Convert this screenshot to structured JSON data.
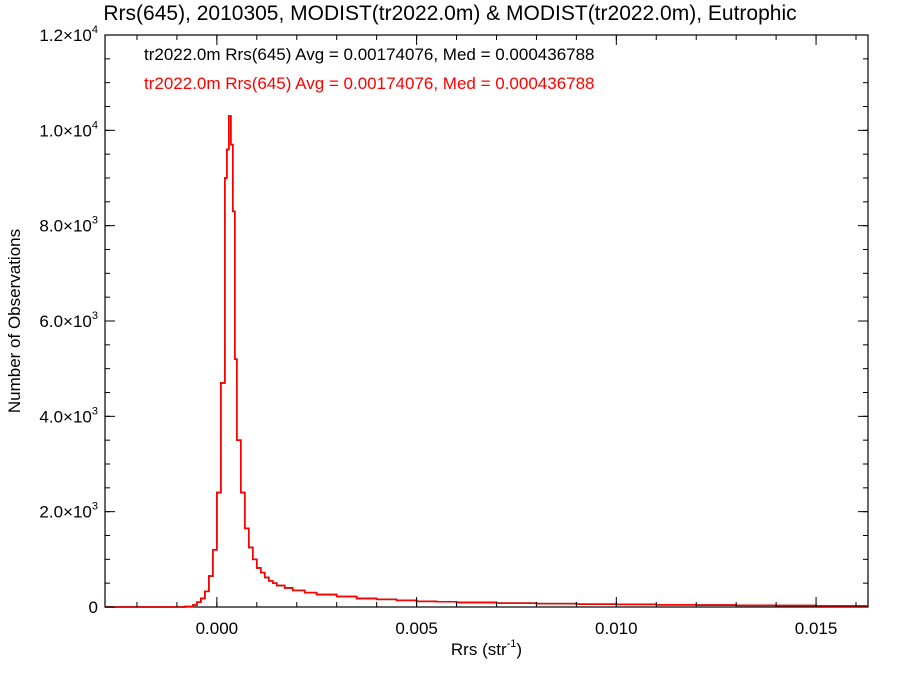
{
  "chart_data": {
    "type": "line",
    "title": "Rrs(645), 2010305, MODIST(tr2022.0m) & MODIST(tr2022.0m), Eutrophic",
    "xlabel": "Rrs (str⁻¹)",
    "xlabel_main": "Rrs (str",
    "xlabel_sup": "-1",
    "xlabel_close": ")",
    "ylabel": "Number of Observations",
    "xlim": [
      -0.0028,
      0.0163
    ],
    "ylim": [
      0,
      12000
    ],
    "x_ticks": [
      {
        "value": 0.0,
        "label": "0.000"
      },
      {
        "value": 0.005,
        "label": "0.005"
      },
      {
        "value": 0.01,
        "label": "0.010"
      },
      {
        "value": 0.015,
        "label": "0.015"
      }
    ],
    "x_minor_step": 0.001,
    "y_ticks": [
      {
        "value": 0,
        "mantissa": "0",
        "exp": ""
      },
      {
        "value": 2000,
        "mantissa": "2.0×10",
        "exp": "3"
      },
      {
        "value": 4000,
        "mantissa": "4.0×10",
        "exp": "3"
      },
      {
        "value": 6000,
        "mantissa": "6.0×10",
        "exp": "3"
      },
      {
        "value": 8000,
        "mantissa": "8.0×10",
        "exp": "3"
      },
      {
        "value": 10000,
        "mantissa": "1.0×10",
        "exp": "4"
      },
      {
        "value": 12000,
        "mantissa": "1.2×10",
        "exp": "4"
      }
    ],
    "y_minor_step": 500,
    "grid": false,
    "annotations": [
      {
        "text": "tr2022.0m Rrs(645) Avg = 0.00174076, Med = 0.000436788",
        "color": "#000000"
      },
      {
        "text": "tr2022.0m Rrs(645) Avg = 0.00174076, Med = 0.000436788",
        "color": "#ff0000"
      }
    ],
    "series": [
      {
        "color": "#000000",
        "step": true,
        "points": [
          [
            -0.0028,
            0
          ],
          [
            -0.001,
            0
          ],
          [
            -0.0008,
            10
          ],
          [
            -0.0006,
            40
          ],
          [
            -0.0005,
            100
          ],
          [
            -0.0004,
            180
          ],
          [
            -0.0003,
            330
          ],
          [
            -0.0002,
            650
          ],
          [
            -0.0001,
            1200
          ],
          [
            0.0,
            2400
          ],
          [
            0.0001,
            4700
          ],
          [
            0.0002,
            9000
          ],
          [
            0.00025,
            9600
          ],
          [
            0.0003,
            10300
          ],
          [
            0.00035,
            9700
          ],
          [
            0.0004,
            8300
          ],
          [
            0.00045,
            5200
          ],
          [
            0.0005,
            3500
          ],
          [
            0.0006,
            2400
          ],
          [
            0.0007,
            1650
          ],
          [
            0.0008,
            1250
          ],
          [
            0.0009,
            1000
          ],
          [
            0.001,
            820
          ],
          [
            0.0011,
            720
          ],
          [
            0.0012,
            620
          ],
          [
            0.0013,
            550
          ],
          [
            0.0014,
            500
          ],
          [
            0.0015,
            450
          ],
          [
            0.0017,
            400
          ],
          [
            0.0019,
            350
          ],
          [
            0.0022,
            300
          ],
          [
            0.0025,
            260
          ],
          [
            0.003,
            220
          ],
          [
            0.0035,
            180
          ],
          [
            0.004,
            160
          ],
          [
            0.0045,
            140
          ],
          [
            0.005,
            120
          ],
          [
            0.0055,
            110
          ],
          [
            0.006,
            95
          ],
          [
            0.007,
            80
          ],
          [
            0.008,
            70
          ],
          [
            0.009,
            60
          ],
          [
            0.01,
            55
          ],
          [
            0.011,
            45
          ],
          [
            0.012,
            40
          ],
          [
            0.013,
            35
          ],
          [
            0.014,
            30
          ],
          [
            0.015,
            25
          ],
          [
            0.0163,
            20
          ]
        ]
      },
      {
        "color": "#ff0000",
        "step": true,
        "points": [
          [
            -0.0028,
            0
          ],
          [
            -0.001,
            0
          ],
          [
            -0.0008,
            10
          ],
          [
            -0.0006,
            40
          ],
          [
            -0.0005,
            100
          ],
          [
            -0.0004,
            180
          ],
          [
            -0.0003,
            330
          ],
          [
            -0.0002,
            650
          ],
          [
            -0.0001,
            1200
          ],
          [
            0.0,
            2400
          ],
          [
            0.0001,
            4700
          ],
          [
            0.0002,
            9000
          ],
          [
            0.00025,
            9600
          ],
          [
            0.0003,
            10300
          ],
          [
            0.00035,
            9700
          ],
          [
            0.0004,
            8300
          ],
          [
            0.00045,
            5200
          ],
          [
            0.0005,
            3500
          ],
          [
            0.0006,
            2400
          ],
          [
            0.0007,
            1650
          ],
          [
            0.0008,
            1250
          ],
          [
            0.0009,
            1000
          ],
          [
            0.001,
            820
          ],
          [
            0.0011,
            720
          ],
          [
            0.0012,
            620
          ],
          [
            0.0013,
            550
          ],
          [
            0.0014,
            500
          ],
          [
            0.0015,
            450
          ],
          [
            0.0017,
            400
          ],
          [
            0.0019,
            350
          ],
          [
            0.0022,
            300
          ],
          [
            0.0025,
            260
          ],
          [
            0.003,
            220
          ],
          [
            0.0035,
            180
          ],
          [
            0.004,
            160
          ],
          [
            0.0045,
            140
          ],
          [
            0.005,
            120
          ],
          [
            0.0055,
            110
          ],
          [
            0.006,
            95
          ],
          [
            0.007,
            80
          ],
          [
            0.008,
            70
          ],
          [
            0.009,
            60
          ],
          [
            0.01,
            55
          ],
          [
            0.011,
            45
          ],
          [
            0.012,
            40
          ],
          [
            0.013,
            35
          ],
          [
            0.014,
            30
          ],
          [
            0.015,
            25
          ],
          [
            0.0163,
            20
          ]
        ]
      }
    ]
  }
}
